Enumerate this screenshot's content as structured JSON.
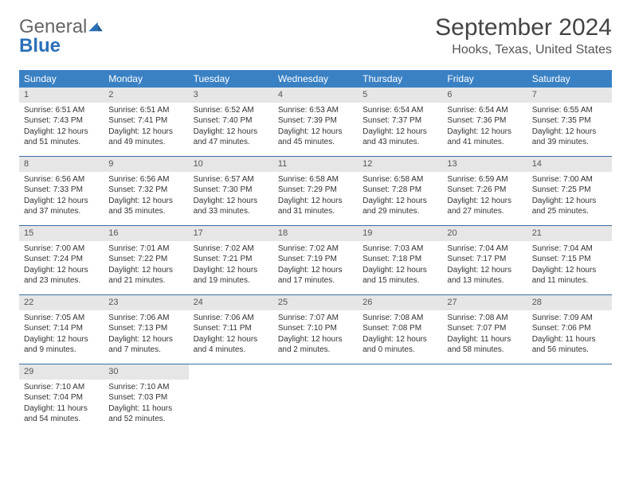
{
  "brand": {
    "word1": "General",
    "word2": "Blue"
  },
  "title": "September 2024",
  "location": "Hooks, Texas, United States",
  "colors": {
    "header_bg": "#3a81c4",
    "header_text": "#ffffff",
    "day_number_bg": "#e6e6e6",
    "row_border": "#3a6ea0",
    "logo_accent": "#2a70b8"
  },
  "weekdays": [
    "Sunday",
    "Monday",
    "Tuesday",
    "Wednesday",
    "Thursday",
    "Friday",
    "Saturday"
  ],
  "weeks": [
    [
      {
        "n": "1",
        "sr": "Sunrise: 6:51 AM",
        "ss": "Sunset: 7:43 PM",
        "dl": "Daylight: 12 hours and 51 minutes."
      },
      {
        "n": "2",
        "sr": "Sunrise: 6:51 AM",
        "ss": "Sunset: 7:41 PM",
        "dl": "Daylight: 12 hours and 49 minutes."
      },
      {
        "n": "3",
        "sr": "Sunrise: 6:52 AM",
        "ss": "Sunset: 7:40 PM",
        "dl": "Daylight: 12 hours and 47 minutes."
      },
      {
        "n": "4",
        "sr": "Sunrise: 6:53 AM",
        "ss": "Sunset: 7:39 PM",
        "dl": "Daylight: 12 hours and 45 minutes."
      },
      {
        "n": "5",
        "sr": "Sunrise: 6:54 AM",
        "ss": "Sunset: 7:37 PM",
        "dl": "Daylight: 12 hours and 43 minutes."
      },
      {
        "n": "6",
        "sr": "Sunrise: 6:54 AM",
        "ss": "Sunset: 7:36 PM",
        "dl": "Daylight: 12 hours and 41 minutes."
      },
      {
        "n": "7",
        "sr": "Sunrise: 6:55 AM",
        "ss": "Sunset: 7:35 PM",
        "dl": "Daylight: 12 hours and 39 minutes."
      }
    ],
    [
      {
        "n": "8",
        "sr": "Sunrise: 6:56 AM",
        "ss": "Sunset: 7:33 PM",
        "dl": "Daylight: 12 hours and 37 minutes."
      },
      {
        "n": "9",
        "sr": "Sunrise: 6:56 AM",
        "ss": "Sunset: 7:32 PM",
        "dl": "Daylight: 12 hours and 35 minutes."
      },
      {
        "n": "10",
        "sr": "Sunrise: 6:57 AM",
        "ss": "Sunset: 7:30 PM",
        "dl": "Daylight: 12 hours and 33 minutes."
      },
      {
        "n": "11",
        "sr": "Sunrise: 6:58 AM",
        "ss": "Sunset: 7:29 PM",
        "dl": "Daylight: 12 hours and 31 minutes."
      },
      {
        "n": "12",
        "sr": "Sunrise: 6:58 AM",
        "ss": "Sunset: 7:28 PM",
        "dl": "Daylight: 12 hours and 29 minutes."
      },
      {
        "n": "13",
        "sr": "Sunrise: 6:59 AM",
        "ss": "Sunset: 7:26 PM",
        "dl": "Daylight: 12 hours and 27 minutes."
      },
      {
        "n": "14",
        "sr": "Sunrise: 7:00 AM",
        "ss": "Sunset: 7:25 PM",
        "dl": "Daylight: 12 hours and 25 minutes."
      }
    ],
    [
      {
        "n": "15",
        "sr": "Sunrise: 7:00 AM",
        "ss": "Sunset: 7:24 PM",
        "dl": "Daylight: 12 hours and 23 minutes."
      },
      {
        "n": "16",
        "sr": "Sunrise: 7:01 AM",
        "ss": "Sunset: 7:22 PM",
        "dl": "Daylight: 12 hours and 21 minutes."
      },
      {
        "n": "17",
        "sr": "Sunrise: 7:02 AM",
        "ss": "Sunset: 7:21 PM",
        "dl": "Daylight: 12 hours and 19 minutes."
      },
      {
        "n": "18",
        "sr": "Sunrise: 7:02 AM",
        "ss": "Sunset: 7:19 PM",
        "dl": "Daylight: 12 hours and 17 minutes."
      },
      {
        "n": "19",
        "sr": "Sunrise: 7:03 AM",
        "ss": "Sunset: 7:18 PM",
        "dl": "Daylight: 12 hours and 15 minutes."
      },
      {
        "n": "20",
        "sr": "Sunrise: 7:04 AM",
        "ss": "Sunset: 7:17 PM",
        "dl": "Daylight: 12 hours and 13 minutes."
      },
      {
        "n": "21",
        "sr": "Sunrise: 7:04 AM",
        "ss": "Sunset: 7:15 PM",
        "dl": "Daylight: 12 hours and 11 minutes."
      }
    ],
    [
      {
        "n": "22",
        "sr": "Sunrise: 7:05 AM",
        "ss": "Sunset: 7:14 PM",
        "dl": "Daylight: 12 hours and 9 minutes."
      },
      {
        "n": "23",
        "sr": "Sunrise: 7:06 AM",
        "ss": "Sunset: 7:13 PM",
        "dl": "Daylight: 12 hours and 7 minutes."
      },
      {
        "n": "24",
        "sr": "Sunrise: 7:06 AM",
        "ss": "Sunset: 7:11 PM",
        "dl": "Daylight: 12 hours and 4 minutes."
      },
      {
        "n": "25",
        "sr": "Sunrise: 7:07 AM",
        "ss": "Sunset: 7:10 PM",
        "dl": "Daylight: 12 hours and 2 minutes."
      },
      {
        "n": "26",
        "sr": "Sunrise: 7:08 AM",
        "ss": "Sunset: 7:08 PM",
        "dl": "Daylight: 12 hours and 0 minutes."
      },
      {
        "n": "27",
        "sr": "Sunrise: 7:08 AM",
        "ss": "Sunset: 7:07 PM",
        "dl": "Daylight: 11 hours and 58 minutes."
      },
      {
        "n": "28",
        "sr": "Sunrise: 7:09 AM",
        "ss": "Sunset: 7:06 PM",
        "dl": "Daylight: 11 hours and 56 minutes."
      }
    ],
    [
      {
        "n": "29",
        "sr": "Sunrise: 7:10 AM",
        "ss": "Sunset: 7:04 PM",
        "dl": "Daylight: 11 hours and 54 minutes."
      },
      {
        "n": "30",
        "sr": "Sunrise: 7:10 AM",
        "ss": "Sunset: 7:03 PM",
        "dl": "Daylight: 11 hours and 52 minutes."
      },
      null,
      null,
      null,
      null,
      null
    ]
  ]
}
